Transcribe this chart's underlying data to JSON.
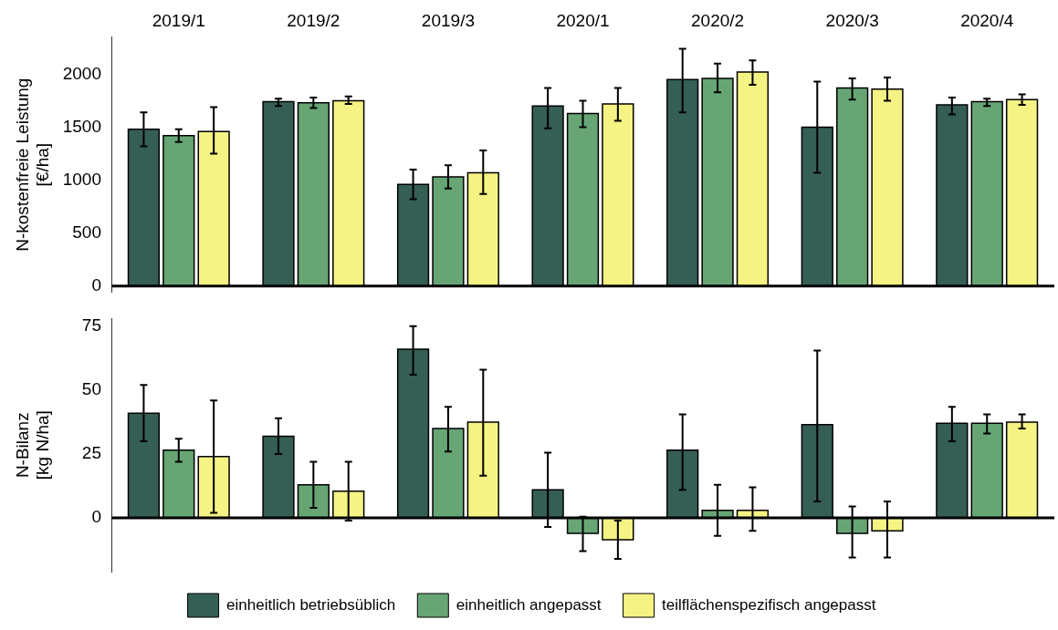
{
  "chart_data": [
    {
      "type": "bar",
      "ylabel": "N-kostenfreie Leistung\n[€/ha]",
      "categories": [
        "2019/1",
        "2019/2",
        "2019/3",
        "2020/1",
        "2020/2",
        "2020/3",
        "2020/4"
      ],
      "ylim": [
        -60,
        2350
      ],
      "yticks": [
        0,
        500,
        1000,
        1500,
        2000
      ],
      "grid": false,
      "ref_lines": [
        {
          "axis": "y",
          "value": 0,
          "color": "#000000"
        }
      ],
      "legend": false,
      "series": [
        {
          "color": "#355e55",
          "values": [
            1480,
            1740,
            960,
            1700,
            1950,
            1500,
            1710
          ],
          "errors": [
            [
              1320,
              1640
            ],
            [
              1700,
              1770
            ],
            [
              820,
              1100
            ],
            [
              1490,
              1870
            ],
            [
              1640,
              2240
            ],
            [
              1070,
              1930
            ],
            [
              1620,
              1780
            ]
          ]
        },
        {
          "color": "#67a575",
          "values": [
            1420,
            1730,
            1030,
            1630,
            1960,
            1870,
            1740
          ],
          "errors": [
            [
              1360,
              1480
            ],
            [
              1680,
              1780
            ],
            [
              920,
              1140
            ],
            [
              1500,
              1750
            ],
            [
              1830,
              2100
            ],
            [
              1760,
              1960
            ],
            [
              1700,
              1770
            ]
          ]
        },
        {
          "color": "#f5f383",
          "values": [
            1460,
            1750,
            1070,
            1720,
            2020,
            1860,
            1760
          ],
          "errors": [
            [
              1250,
              1690
            ],
            [
              1720,
              1790
            ],
            [
              870,
              1280
            ],
            [
              1560,
              1870
            ],
            [
              1900,
              2130
            ],
            [
              1750,
              1970
            ],
            [
              1710,
              1810
            ]
          ]
        }
      ]
    },
    {
      "type": "bar",
      "ylabel": "N-Bilanz\n[kg N/ha]",
      "categories": [
        "2019/1",
        "2019/2",
        "2019/3",
        "2020/1",
        "2020/2",
        "2020/3",
        "2020/4"
      ],
      "tick_labels": "y",
      "ylim": [
        -21,
        78
      ],
      "yticks": [
        0,
        25,
        50,
        75
      ],
      "grid": false,
      "ref_lines": [
        {
          "axis": "y",
          "value": 0,
          "color": "#000000"
        }
      ],
      "legend": "bottom",
      "series": [
        {
          "name": "einheitlich betriebsüblich",
          "color": "#355e55",
          "values": [
            41,
            32,
            66,
            11,
            26.5,
            36.5,
            37
          ],
          "errors": [
            [
              30,
              52
            ],
            [
              25,
              39
            ],
            [
              56,
              75
            ],
            [
              -3.5,
              25.5
            ],
            [
              11,
              40.5
            ],
            [
              6.5,
              65.5
            ],
            [
              30,
              43.5
            ]
          ]
        },
        {
          "name": "einheitlich angepasst",
          "color": "#67a575",
          "values": [
            26.5,
            13,
            35,
            -6,
            3,
            -6,
            37
          ],
          "errors": [
            [
              22,
              31
            ],
            [
              4,
              22
            ],
            [
              26,
              43.5
            ],
            [
              -13,
              0.5
            ],
            [
              -7,
              13
            ],
            [
              -15.5,
              4.5
            ],
            [
              33,
              40.5
            ]
          ]
        },
        {
          "name": "teilflächenspezifisch angepasst",
          "color": "#f5f383",
          "values": [
            24,
            10.5,
            37.5,
            -8.5,
            3,
            -5,
            37.5
          ],
          "errors": [
            [
              2,
              46
            ],
            [
              -1,
              22
            ],
            [
              16.5,
              58
            ],
            [
              -16,
              -1
            ],
            [
              -5,
              12
            ],
            [
              -15.5,
              6.5
            ],
            [
              35,
              40.5
            ]
          ]
        }
      ]
    }
  ]
}
